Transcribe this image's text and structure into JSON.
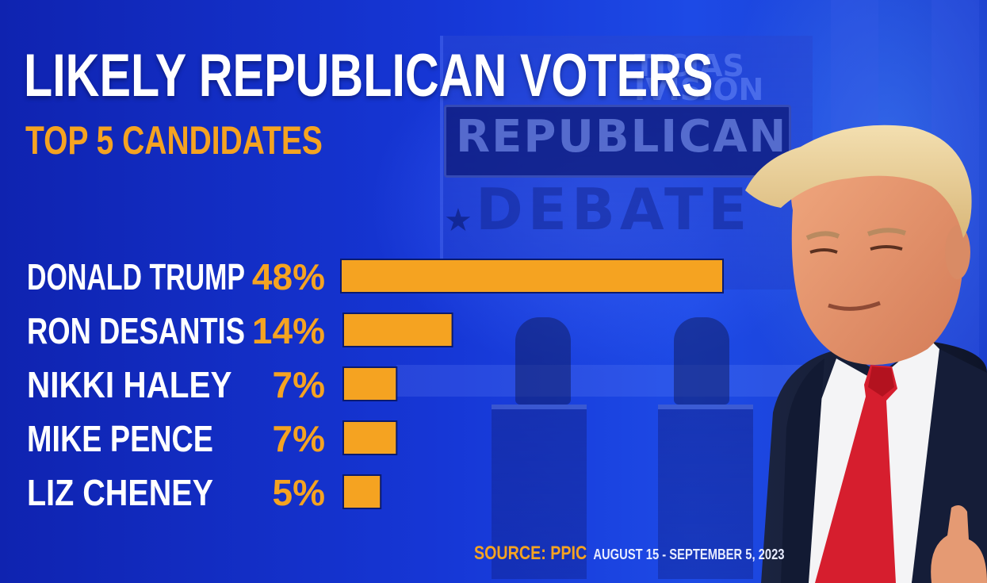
{
  "title": "LIKELY REPUBLICAN VOTERS",
  "subtitle": "TOP 5 CANDIDATES",
  "source": {
    "label": "SOURCE: PPIC",
    "dates": "AUGUST 15 - SEPTEMBER 5, 2023"
  },
  "background": {
    "banner_text": "REPUBLICAN",
    "debate_text": "DEBATE",
    "brand_text": "TICIAS\nIVISION"
  },
  "colors": {
    "bar": "#f5a321",
    "background": "#1637d6",
    "title": "#ffffff",
    "accent": "#f5a321"
  },
  "chart_data": {
    "type": "bar",
    "orientation": "horizontal",
    "title": "LIKELY REPUBLICAN VOTERS",
    "subtitle": "TOP 5 CANDIDATES",
    "categories": [
      "DONALD TRUMP",
      "RON DESANTIS",
      "NIKKI HALEY",
      "MIKE PENCE",
      "LIZ CHENEY"
    ],
    "values": [
      48,
      14,
      7,
      7,
      5
    ],
    "value_labels": [
      "48%",
      "14%",
      "7%",
      "7%",
      "5%"
    ],
    "unit": "%",
    "xlim": [
      0,
      48
    ],
    "grid": false,
    "legend": "none"
  }
}
